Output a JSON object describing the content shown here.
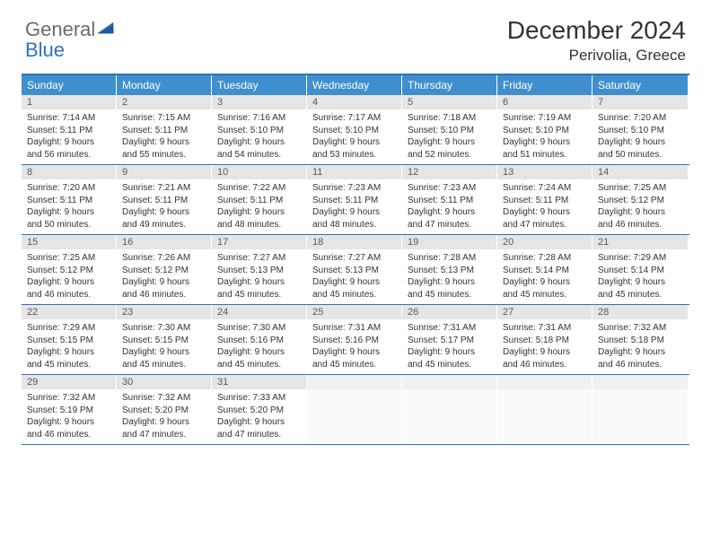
{
  "logo": {
    "general": "General",
    "blue": "Blue"
  },
  "title": "December 2024",
  "location": "Perivolia, Greece",
  "colors": {
    "header_bg": "#3f8fce",
    "border": "#2f72b9",
    "daynum_bg": "#e5e5e5",
    "text": "#333333"
  },
  "weekdays": [
    "Sunday",
    "Monday",
    "Tuesday",
    "Wednesday",
    "Thursday",
    "Friday",
    "Saturday"
  ],
  "weeks": [
    [
      {
        "n": "1",
        "sr": "7:14 AM",
        "ss": "5:11 PM",
        "dl": "9 hours and 56 minutes."
      },
      {
        "n": "2",
        "sr": "7:15 AM",
        "ss": "5:11 PM",
        "dl": "9 hours and 55 minutes."
      },
      {
        "n": "3",
        "sr": "7:16 AM",
        "ss": "5:10 PM",
        "dl": "9 hours and 54 minutes."
      },
      {
        "n": "4",
        "sr": "7:17 AM",
        "ss": "5:10 PM",
        "dl": "9 hours and 53 minutes."
      },
      {
        "n": "5",
        "sr": "7:18 AM",
        "ss": "5:10 PM",
        "dl": "9 hours and 52 minutes."
      },
      {
        "n": "6",
        "sr": "7:19 AM",
        "ss": "5:10 PM",
        "dl": "9 hours and 51 minutes."
      },
      {
        "n": "7",
        "sr": "7:20 AM",
        "ss": "5:10 PM",
        "dl": "9 hours and 50 minutes."
      }
    ],
    [
      {
        "n": "8",
        "sr": "7:20 AM",
        "ss": "5:11 PM",
        "dl": "9 hours and 50 minutes."
      },
      {
        "n": "9",
        "sr": "7:21 AM",
        "ss": "5:11 PM",
        "dl": "9 hours and 49 minutes."
      },
      {
        "n": "10",
        "sr": "7:22 AM",
        "ss": "5:11 PM",
        "dl": "9 hours and 48 minutes."
      },
      {
        "n": "11",
        "sr": "7:23 AM",
        "ss": "5:11 PM",
        "dl": "9 hours and 48 minutes."
      },
      {
        "n": "12",
        "sr": "7:23 AM",
        "ss": "5:11 PM",
        "dl": "9 hours and 47 minutes."
      },
      {
        "n": "13",
        "sr": "7:24 AM",
        "ss": "5:11 PM",
        "dl": "9 hours and 47 minutes."
      },
      {
        "n": "14",
        "sr": "7:25 AM",
        "ss": "5:12 PM",
        "dl": "9 hours and 46 minutes."
      }
    ],
    [
      {
        "n": "15",
        "sr": "7:25 AM",
        "ss": "5:12 PM",
        "dl": "9 hours and 46 minutes."
      },
      {
        "n": "16",
        "sr": "7:26 AM",
        "ss": "5:12 PM",
        "dl": "9 hours and 46 minutes."
      },
      {
        "n": "17",
        "sr": "7:27 AM",
        "ss": "5:13 PM",
        "dl": "9 hours and 45 minutes."
      },
      {
        "n": "18",
        "sr": "7:27 AM",
        "ss": "5:13 PM",
        "dl": "9 hours and 45 minutes."
      },
      {
        "n": "19",
        "sr": "7:28 AM",
        "ss": "5:13 PM",
        "dl": "9 hours and 45 minutes."
      },
      {
        "n": "20",
        "sr": "7:28 AM",
        "ss": "5:14 PM",
        "dl": "9 hours and 45 minutes."
      },
      {
        "n": "21",
        "sr": "7:29 AM",
        "ss": "5:14 PM",
        "dl": "9 hours and 45 minutes."
      }
    ],
    [
      {
        "n": "22",
        "sr": "7:29 AM",
        "ss": "5:15 PM",
        "dl": "9 hours and 45 minutes."
      },
      {
        "n": "23",
        "sr": "7:30 AM",
        "ss": "5:15 PM",
        "dl": "9 hours and 45 minutes."
      },
      {
        "n": "24",
        "sr": "7:30 AM",
        "ss": "5:16 PM",
        "dl": "9 hours and 45 minutes."
      },
      {
        "n": "25",
        "sr": "7:31 AM",
        "ss": "5:16 PM",
        "dl": "9 hours and 45 minutes."
      },
      {
        "n": "26",
        "sr": "7:31 AM",
        "ss": "5:17 PM",
        "dl": "9 hours and 45 minutes."
      },
      {
        "n": "27",
        "sr": "7:31 AM",
        "ss": "5:18 PM",
        "dl": "9 hours and 46 minutes."
      },
      {
        "n": "28",
        "sr": "7:32 AM",
        "ss": "5:18 PM",
        "dl": "9 hours and 46 minutes."
      }
    ],
    [
      {
        "n": "29",
        "sr": "7:32 AM",
        "ss": "5:19 PM",
        "dl": "9 hours and 46 minutes."
      },
      {
        "n": "30",
        "sr": "7:32 AM",
        "ss": "5:20 PM",
        "dl": "9 hours and 47 minutes."
      },
      {
        "n": "31",
        "sr": "7:33 AM",
        "ss": "5:20 PM",
        "dl": "9 hours and 47 minutes."
      },
      null,
      null,
      null,
      null
    ]
  ],
  "labels": {
    "sunrise": "Sunrise:",
    "sunset": "Sunset:",
    "daylight": "Daylight:"
  }
}
